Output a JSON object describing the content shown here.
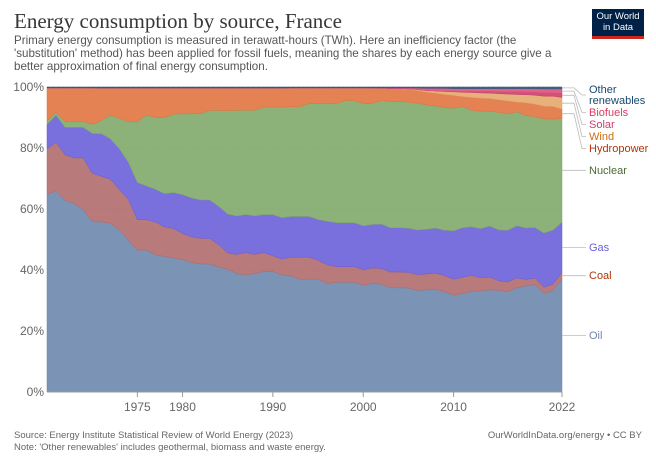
{
  "header": {
    "title": "Energy consumption by source, France",
    "subtitle": "Primary energy consumption is measured in terawatt-hours (TWh). Here an inefficiency factor (the 'substitution' method) has been applied for fossil fuels, meaning the shares by each energy source give a better approximation of final energy consumption.",
    "logo_line1": "Our World",
    "logo_line2": "in Data"
  },
  "footer": {
    "source": "Source: Energy Institute Statistical Review of World Energy (2023)",
    "note": "Note: 'Other renewables' includes geothermal, biomass and waste energy.",
    "credit": "OurWorldInData.org/energy • CC BY"
  },
  "chart_data": {
    "type": "area",
    "stacked": true,
    "relative": true,
    "title": "Energy consumption by source, France",
    "xlabel": "",
    "ylabel": "",
    "ylim": [
      0,
      100
    ],
    "xlim": [
      1965,
      2022
    ],
    "y_ticks": [
      0,
      20,
      40,
      60,
      80,
      100
    ],
    "y_tick_labels": [
      "0%",
      "20%",
      "40%",
      "60%",
      "80%",
      "100%"
    ],
    "x_ticks": [
      1975,
      1980,
      1990,
      2000,
      2010,
      2022
    ],
    "x_tick_labels": [
      "1975",
      "1980",
      "1990",
      "2000",
      "2010",
      "2022"
    ],
    "grid": true,
    "legend_position": "right",
    "x": [
      1965,
      1966,
      1967,
      1968,
      1969,
      1970,
      1971,
      1972,
      1973,
      1974,
      1975,
      1976,
      1977,
      1978,
      1979,
      1980,
      1981,
      1982,
      1983,
      1984,
      1985,
      1986,
      1987,
      1988,
      1989,
      1990,
      1991,
      1992,
      1993,
      1994,
      1995,
      1996,
      1997,
      1998,
      1999,
      2000,
      2001,
      2002,
      2003,
      2004,
      2005,
      2006,
      2007,
      2008,
      2009,
      2010,
      2011,
      2012,
      2013,
      2014,
      2015,
      2016,
      2017,
      2018,
      2019,
      2020,
      2021,
      2022
    ],
    "series": [
      {
        "name": "Oil",
        "color": "#6d87ad",
        "label_color": "#6d87ad",
        "values": [
          65,
          66,
          63,
          62,
          60,
          56,
          52,
          50,
          48,
          45,
          42,
          42,
          42,
          41,
          41,
          41,
          40,
          40,
          40,
          39,
          38,
          37,
          37,
          37,
          38,
          38,
          37,
          37,
          36,
          36,
          36,
          35,
          35,
          35,
          35,
          34,
          35,
          34,
          33,
          33,
          33,
          32,
          32,
          32,
          31,
          30,
          30,
          31,
          31,
          32,
          32,
          31,
          32,
          33,
          34,
          31,
          32,
          36
        ]
      },
      {
        "name": "Coal",
        "color": "#b06c6c",
        "label_color": "#b13507",
        "values": [
          15,
          16,
          15,
          15,
          17,
          16,
          14,
          13,
          12,
          12,
          9,
          9,
          10,
          9,
          9,
          8,
          8,
          8,
          8,
          7,
          5,
          6,
          7,
          6,
          6,
          5,
          5,
          6,
          7,
          7,
          6,
          6,
          5,
          5,
          5,
          5,
          5,
          5,
          5,
          5,
          5,
          5,
          5,
          5,
          5,
          5,
          5,
          5,
          4,
          4,
          3,
          3,
          3,
          2,
          2,
          2,
          2,
          2
        ]
      },
      {
        "name": "Gas",
        "color": "#6a5fd9",
        "label_color": "#6a5fd9",
        "values": [
          8,
          9,
          9,
          10,
          10,
          13,
          13,
          12,
          12,
          11,
          11,
          10,
          10,
          10,
          11,
          12,
          12,
          12,
          12,
          12,
          12,
          12,
          12,
          12,
          12,
          13,
          13,
          13,
          13,
          13,
          13,
          14,
          14,
          14,
          14,
          14,
          14,
          14,
          14,
          14,
          14,
          14,
          14,
          14,
          14,
          15,
          15,
          15,
          15,
          16,
          16,
          16,
          16,
          16,
          16,
          17,
          17,
          16
        ]
      },
      {
        "name": "Nuclear",
        "color": "#7fa86a",
        "label_color": "#4c6a32",
        "values": [
          1,
          1,
          2,
          2,
          2,
          3,
          4,
          7,
          9,
          12,
          18,
          21,
          22,
          23,
          24,
          25,
          26,
          27,
          28,
          30,
          32,
          33,
          33,
          33,
          34,
          34,
          35,
          35,
          35,
          36,
          37,
          38,
          38,
          39,
          39,
          39,
          39,
          39,
          40,
          40,
          40,
          40,
          39,
          38,
          38,
          38,
          37,
          36,
          36,
          36,
          37,
          36,
          35,
          35,
          35,
          36,
          35,
          33
        ]
      },
      {
        "name": "Hydropower",
        "color": "#e17440",
        "label_color": "#b13507",
        "values": [
          11,
          8,
          11,
          11,
          11,
          12,
          10,
          8,
          9,
          10,
          10,
          8,
          9,
          9,
          8,
          8,
          8,
          8,
          7,
          7,
          7,
          7,
          7,
          7,
          6,
          6,
          6,
          6,
          6,
          5,
          5,
          5,
          5,
          4,
          4,
          5,
          5,
          4,
          4,
          4,
          4,
          4,
          4,
          4,
          4,
          4,
          3,
          4,
          4,
          4,
          4,
          4,
          3,
          4,
          4,
          4,
          4,
          3
        ]
      },
      {
        "name": "Wind",
        "color": "#e6a76b",
        "label_color": "#ce6d12",
        "values": [
          0,
          0,
          0,
          0,
          0,
          0,
          0,
          0,
          0,
          0,
          0,
          0,
          0,
          0,
          0,
          0,
          0,
          0,
          0,
          0,
          0,
          0,
          0,
          0,
          0,
          0,
          0,
          0,
          0,
          0,
          0,
          0,
          0,
          0,
          0,
          0,
          0,
          0,
          0.1,
          0.1,
          0.2,
          0.3,
          0.5,
          0.7,
          0.9,
          1.1,
          1.3,
          1.5,
          1.6,
          1.7,
          1.9,
          2.1,
          2.3,
          2.5,
          2.8,
          3.1,
          3.2,
          3.7
        ]
      },
      {
        "name": "Solar",
        "color": "#c5416b",
        "label_color": "#c5416b",
        "values": [
          0,
          0,
          0,
          0,
          0,
          0,
          0,
          0,
          0,
          0,
          0,
          0,
          0,
          0,
          0,
          0,
          0,
          0,
          0,
          0,
          0,
          0,
          0,
          0,
          0,
          0,
          0,
          0,
          0,
          0,
          0,
          0,
          0,
          0,
          0,
          0,
          0,
          0,
          0,
          0,
          0,
          0,
          0,
          0,
          0.1,
          0.1,
          0.2,
          0.3,
          0.4,
          0.5,
          0.6,
          0.7,
          0.8,
          0.8,
          0.9,
          1.0,
          1.0,
          1.3
        ]
      },
      {
        "name": "Biofuels",
        "color": "#e0507c",
        "label_color": "#e03a61",
        "values": [
          0,
          0,
          0,
          0,
          0,
          0,
          0,
          0,
          0,
          0,
          0,
          0,
          0,
          0,
          0,
          0,
          0,
          0,
          0,
          0,
          0,
          0,
          0,
          0,
          0,
          0,
          0,
          0,
          0,
          0,
          0,
          0,
          0,
          0,
          0,
          0,
          0,
          0,
          0.2,
          0.2,
          0.3,
          0.5,
          0.7,
          0.8,
          0.9,
          0.9,
          0.9,
          0.9,
          0.9,
          0.9,
          1.0,
          1.0,
          1.0,
          1.1,
          1.2,
          1.3,
          1.3,
          1.4
        ]
      },
      {
        "name": "Other renewables",
        "color": "#2c5578",
        "label_color": "#18476f",
        "values": [
          0.3,
          0.3,
          0.3,
          0.3,
          0.3,
          0.3,
          0.3,
          0.3,
          0.3,
          0.3,
          0.3,
          0.3,
          0.3,
          0.3,
          0.3,
          0.3,
          0.3,
          0.3,
          0.3,
          0.3,
          0.3,
          0.3,
          0.3,
          0.3,
          0.3,
          0.3,
          0.3,
          0.3,
          0.3,
          0.3,
          0.3,
          0.3,
          0.3,
          0.3,
          0.3,
          0.3,
          0.3,
          0.3,
          0.3,
          0.3,
          0.3,
          0.3,
          0.4,
          0.4,
          0.4,
          0.5,
          0.5,
          0.5,
          0.5,
          0.5,
          0.5,
          0.5,
          0.5,
          0.5,
          0.5,
          0.6,
          0.6,
          0.6
        ]
      }
    ]
  }
}
